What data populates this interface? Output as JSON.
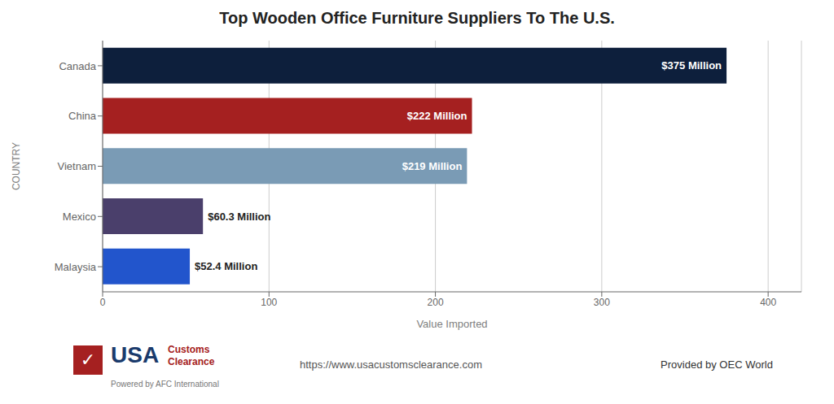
{
  "chart_data": {
    "type": "bar",
    "orientation": "horizontal",
    "title": "Top Wooden Office Furniture Suppliers To The U.S.",
    "categories": [
      "Malaysia",
      "Mexico",
      "Vietnam",
      "China",
      "Canada"
    ],
    "values": [
      52.4,
      60.3,
      219,
      222,
      375
    ],
    "value_labels": [
      "$52.4 Million",
      "$60.3 Million",
      "$219 Million",
      "$222 Million",
      "$375 Million"
    ],
    "colors": [
      "#2255cc",
      "#4a3f6b",
      "#7a9bb5",
      "#a52020",
      "#0d1f3c"
    ],
    "xlabel": "Value Imported",
    "ylabel": "COUNTRY",
    "xlim": [
      0,
      420
    ],
    "xticks": [
      0,
      100,
      200,
      300,
      400
    ],
    "grid": true,
    "data_labels": true,
    "annotations": [
      {
        "text": "✓",
        "color": "#a52020"
      },
      {
        "text": "USA",
        "color": "#1a3a6b"
      },
      {
        "text": "Customs\nClearance",
        "color": "#a52020"
      },
      {
        "text": "Powered by AFC International"
      },
      {
        "text": "https://www.usacustomsclearance.com"
      },
      {
        "text": "Provided by OEC World"
      }
    ]
  }
}
